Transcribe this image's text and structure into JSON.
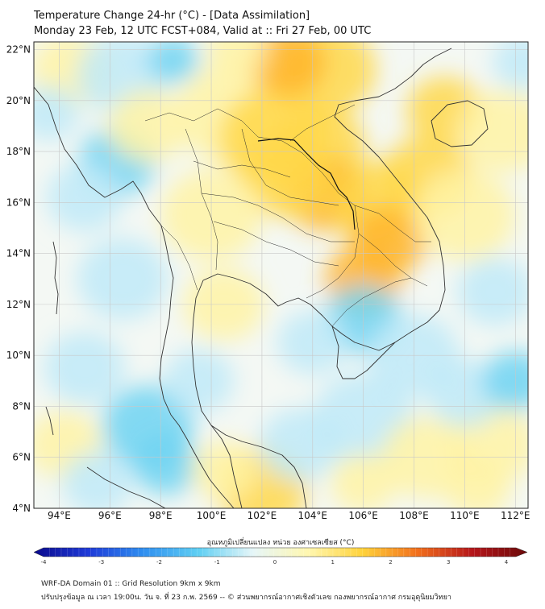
{
  "header": {
    "title_line1": "Temperature Change 24-hr (°C) - [Data Assimilation]",
    "title_line2": "Monday 23 Feb, 12 UTC FCST+084, Valid at :: Fri 27 Feb, 00 UTC"
  },
  "map": {
    "lat_labels": [
      "22°N",
      "20°N",
      "18°N",
      "16°N",
      "14°N",
      "12°N",
      "10°N",
      "8°N",
      "6°N",
      "4°N"
    ],
    "lon_labels": [
      "94°E",
      "96°E",
      "98°E",
      "100°E",
      "102°E",
      "104°E",
      "106°E",
      "108°E",
      "110°E",
      "112°E"
    ],
    "lat_range": [
      4,
      22.3
    ],
    "lon_range": [
      93,
      112.5
    ],
    "field_colors": {
      "cool_strong": "#6fd3f2",
      "cool_light": "#bfeaf8",
      "neutral": "#f4f8f4",
      "warm_light": "#fff3a6",
      "warm": "#ffd84a",
      "warm_strong": "#ffb52a",
      "hot": "#f07a1c"
    }
  },
  "colorbar": {
    "title": "อุณหภูมิเปลี่ยนแปลง หน่วย องศาเซลเซียส (°C)",
    "ticks": [
      "-4",
      "-3",
      "-2",
      "-1",
      "0",
      "1",
      "2",
      "3",
      "4"
    ],
    "range": [
      -4,
      4
    ],
    "colors": [
      "#0a0a8c",
      "#1e3ad8",
      "#2f8ff0",
      "#5fcff3",
      "#e6f6f8",
      "#fff7b0",
      "#ffd23a",
      "#f26f1c",
      "#b5151a",
      "#6b0a0a"
    ]
  },
  "footer": {
    "line1": "WRF-DA Domain 01 :: Grid Resolution 9km x 9km",
    "line2": "ปรับปรุงข้อมูล ณ เวลา 19:00น. วัน จ. ที่ 23 ก.พ. 2569 -- © ส่วนพยากรณ์อากาศเชิงตัวเลข กองพยากรณ์อากาศ กรมอุตุนิยมวิทยา"
  }
}
